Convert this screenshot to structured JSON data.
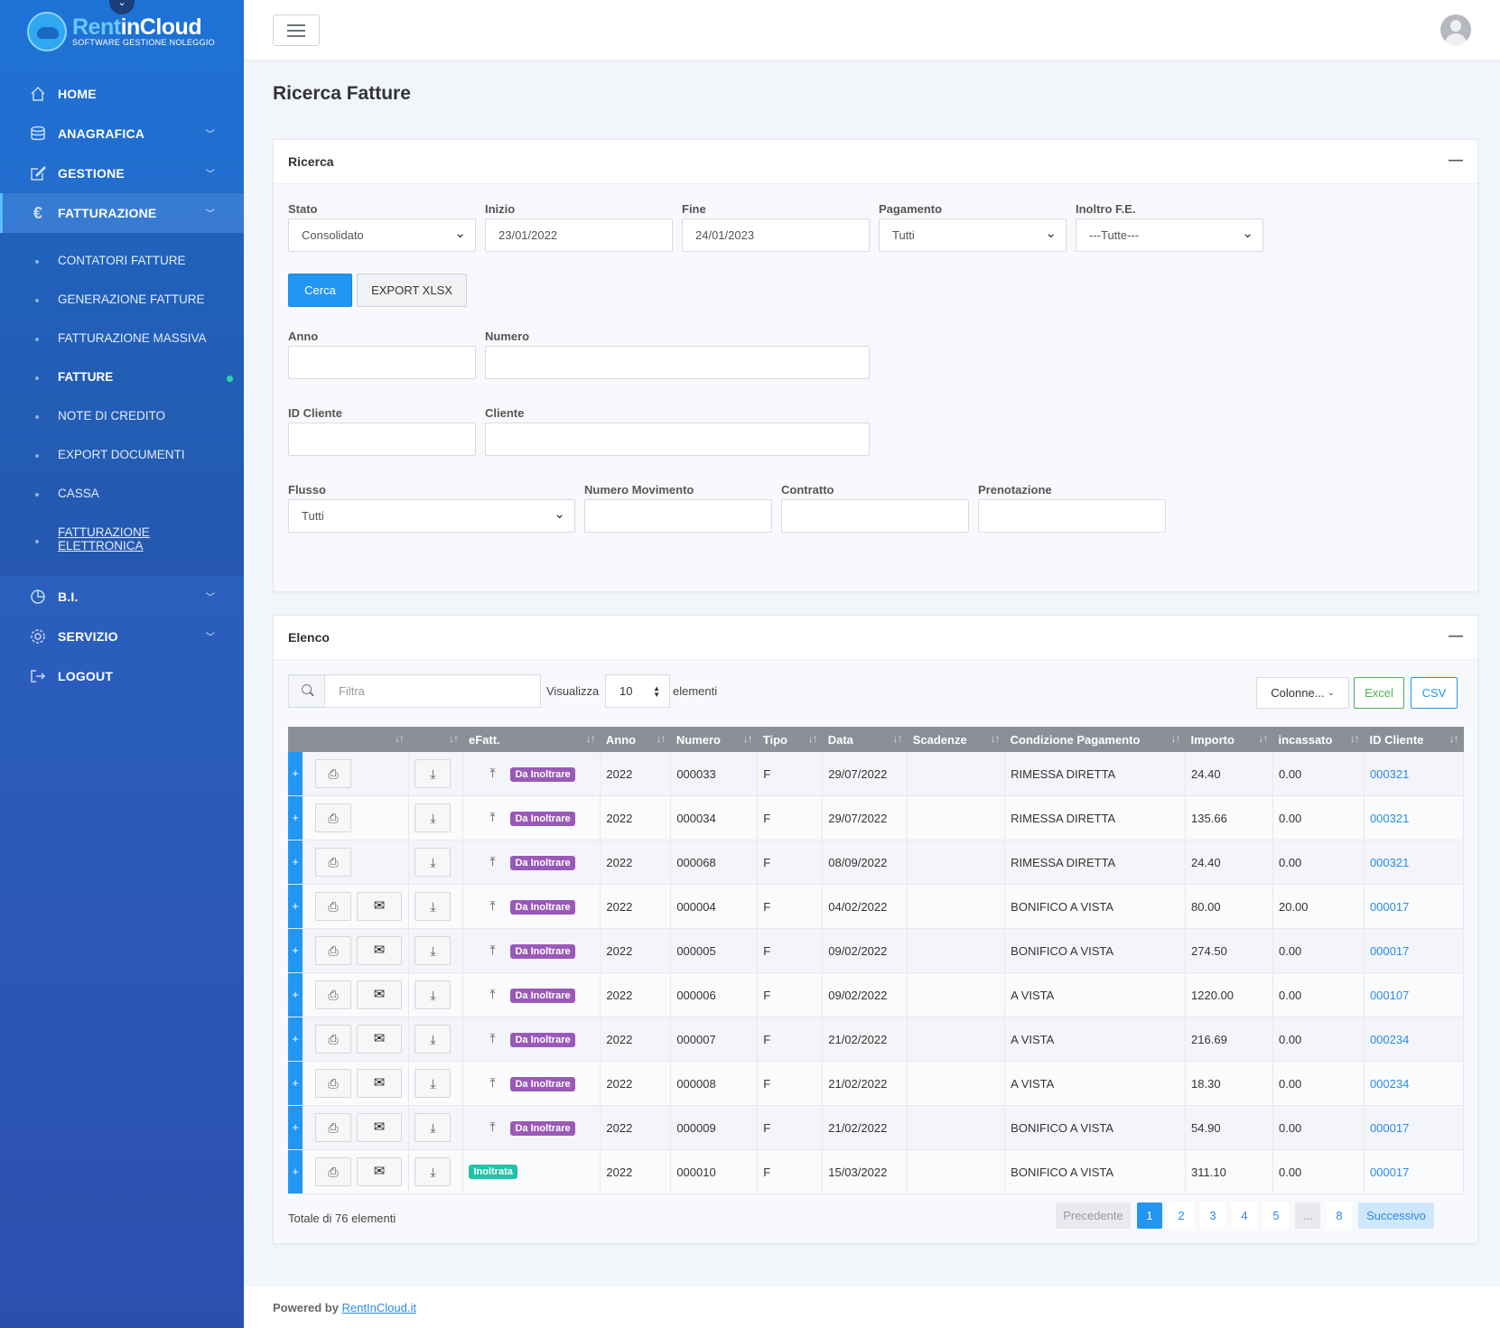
{
  "app": {
    "brand_part1": "Rent",
    "brand_part2": "inCloud",
    "tagline": "SOFTWARE GESTIONE NOLEGGIO"
  },
  "sidebar": {
    "items": [
      {
        "label": "HOME",
        "icon": "home-icon"
      },
      {
        "label": "ANAGRAFICA",
        "icon": "database-icon"
      },
      {
        "label": "GESTIONE",
        "icon": "edit-icon"
      },
      {
        "label": "FATTURAZIONE",
        "icon": "euro-icon"
      },
      {
        "label": "B.I.",
        "icon": "chart-pie-icon"
      },
      {
        "label": "SERVIZIO",
        "icon": "gear-icon"
      },
      {
        "label": "LOGOUT",
        "icon": "logout-icon"
      }
    ],
    "submenu": [
      "CONTATORI FATTURE",
      "GENERAZIONE FATTURE",
      "FATTURAZIONE MASSIVA",
      "FATTURE",
      "NOTE DI CREDITO",
      "EXPORT DOCUMENTI",
      "CASSA",
      "FATTURAZIONE",
      "ELETTRONICA"
    ]
  },
  "page": {
    "title": "Ricerca Fatture"
  },
  "ricerca": {
    "title": "Ricerca",
    "collapse": "—",
    "stato": {
      "label": "Stato",
      "value": "Consolidato"
    },
    "inizio": {
      "label": "Inizio",
      "value": "23/01/2022"
    },
    "fine": {
      "label": "Fine",
      "value": "24/01/2023"
    },
    "pagamento": {
      "label": "Pagamento",
      "value": "Tutti"
    },
    "inoltro": {
      "label": "Inoltro F.E.",
      "value": "---Tutte---"
    },
    "cerca_btn": "Cerca",
    "export_btn": "EXPORT XLSX",
    "anno": {
      "label": "Anno"
    },
    "numero": {
      "label": "Numero"
    },
    "id_cliente": {
      "label": "ID Cliente"
    },
    "cliente": {
      "label": "Cliente"
    },
    "flusso": {
      "label": "Flusso",
      "value": "Tutti"
    },
    "numero_movimento": {
      "label": "Numero Movimento"
    },
    "contratto": {
      "label": "Contratto"
    },
    "prenotazione": {
      "label": "Prenotazione"
    }
  },
  "elenco": {
    "title": "Elenco",
    "collapse": "—",
    "filter_placeholder": "Filtra",
    "visualizza": "Visualizza",
    "page_size": "10",
    "elementi": "elementi",
    "colonne_btn": "Colonne...",
    "excel_btn": "Excel",
    "csv_btn": "CSV",
    "columns": [
      "",
      "",
      "eFatt.",
      "Anno",
      "Numero",
      "Tipo",
      "Data",
      "Scadenze",
      "Condizione Pagamento",
      "Importo",
      "incassato",
      "ID Cliente"
    ],
    "rows": [
      {
        "mail": false,
        "status": "Da Inoltrare",
        "upload": true,
        "anno": "2022",
        "numero": "000033",
        "tipo": "F",
        "data": "29/07/2022",
        "scadenze": "",
        "condizione": "RIMESSA DIRETTA",
        "importo": "24.40",
        "incassato": "0.00",
        "id_cliente": "000321"
      },
      {
        "mail": false,
        "status": "Da Inoltrare",
        "upload": true,
        "anno": "2022",
        "numero": "000034",
        "tipo": "F",
        "data": "29/07/2022",
        "scadenze": "",
        "condizione": "RIMESSA DIRETTA",
        "importo": "135.66",
        "incassato": "0.00",
        "id_cliente": "000321"
      },
      {
        "mail": false,
        "status": "Da Inoltrare",
        "upload": true,
        "anno": "2022",
        "numero": "000068",
        "tipo": "F",
        "data": "08/09/2022",
        "scadenze": "",
        "condizione": "RIMESSA DIRETTA",
        "importo": "24.40",
        "incassato": "0.00",
        "id_cliente": "000321"
      },
      {
        "mail": true,
        "status": "Da Inoltrare",
        "upload": true,
        "anno": "2022",
        "numero": "000004",
        "tipo": "F",
        "data": "04/02/2022",
        "scadenze": "",
        "condizione": "BONIFICO A VISTA",
        "importo": "80.00",
        "incassato": "20.00",
        "id_cliente": "000017"
      },
      {
        "mail": true,
        "status": "Da Inoltrare",
        "upload": true,
        "anno": "2022",
        "numero": "000005",
        "tipo": "F",
        "data": "09/02/2022",
        "scadenze": "",
        "condizione": "BONIFICO A VISTA",
        "importo": "274.50",
        "incassato": "0.00",
        "id_cliente": "000017"
      },
      {
        "mail": true,
        "status": "Da Inoltrare",
        "upload": true,
        "anno": "2022",
        "numero": "000006",
        "tipo": "F",
        "data": "09/02/2022",
        "scadenze": "",
        "condizione": "A VISTA",
        "importo": "1220.00",
        "incassato": "0.00",
        "id_cliente": "000107"
      },
      {
        "mail": true,
        "status": "Da Inoltrare",
        "upload": true,
        "anno": "2022",
        "numero": "000007",
        "tipo": "F",
        "data": "21/02/2022",
        "scadenze": "",
        "condizione": "A VISTA",
        "importo": "216.69",
        "incassato": "0.00",
        "id_cliente": "000234"
      },
      {
        "mail": true,
        "status": "Da Inoltrare",
        "upload": true,
        "anno": "2022",
        "numero": "000008",
        "tipo": "F",
        "data": "21/02/2022",
        "scadenze": "",
        "condizione": "A VISTA",
        "importo": "18.30",
        "incassato": "0.00",
        "id_cliente": "000234"
      },
      {
        "mail": true,
        "status": "Da Inoltrare",
        "upload": true,
        "anno": "2022",
        "numero": "000009",
        "tipo": "F",
        "data": "21/02/2022",
        "scadenze": "",
        "condizione": "BONIFICO A VISTA",
        "importo": "54.90",
        "incassato": "0.00",
        "id_cliente": "000017"
      },
      {
        "mail": true,
        "status": "Inoltrata",
        "upload": false,
        "anno": "2022",
        "numero": "000010",
        "tipo": "F",
        "data": "15/03/2022",
        "scadenze": "",
        "condizione": "BONIFICO A VISTA",
        "importo": "311.10",
        "incassato": "0.00",
        "id_cliente": "000017"
      }
    ],
    "totale": "Totale di 76 elementi",
    "pagination": {
      "prev": "Precedente",
      "pages": [
        "1",
        "2",
        "3",
        "4",
        "5",
        "...",
        "8"
      ],
      "current": "1",
      "next": "Successivo"
    }
  },
  "footer": {
    "prefix": "Powered by",
    "link": "RentInCloud.it"
  },
  "colors": {
    "primary": "#2196f3",
    "sidebar": "#2a5fbd",
    "badge_da_inoltrare": "#9a59b9",
    "badge_inoltrata": "#1fc3a6",
    "excel": "#4caf50"
  }
}
